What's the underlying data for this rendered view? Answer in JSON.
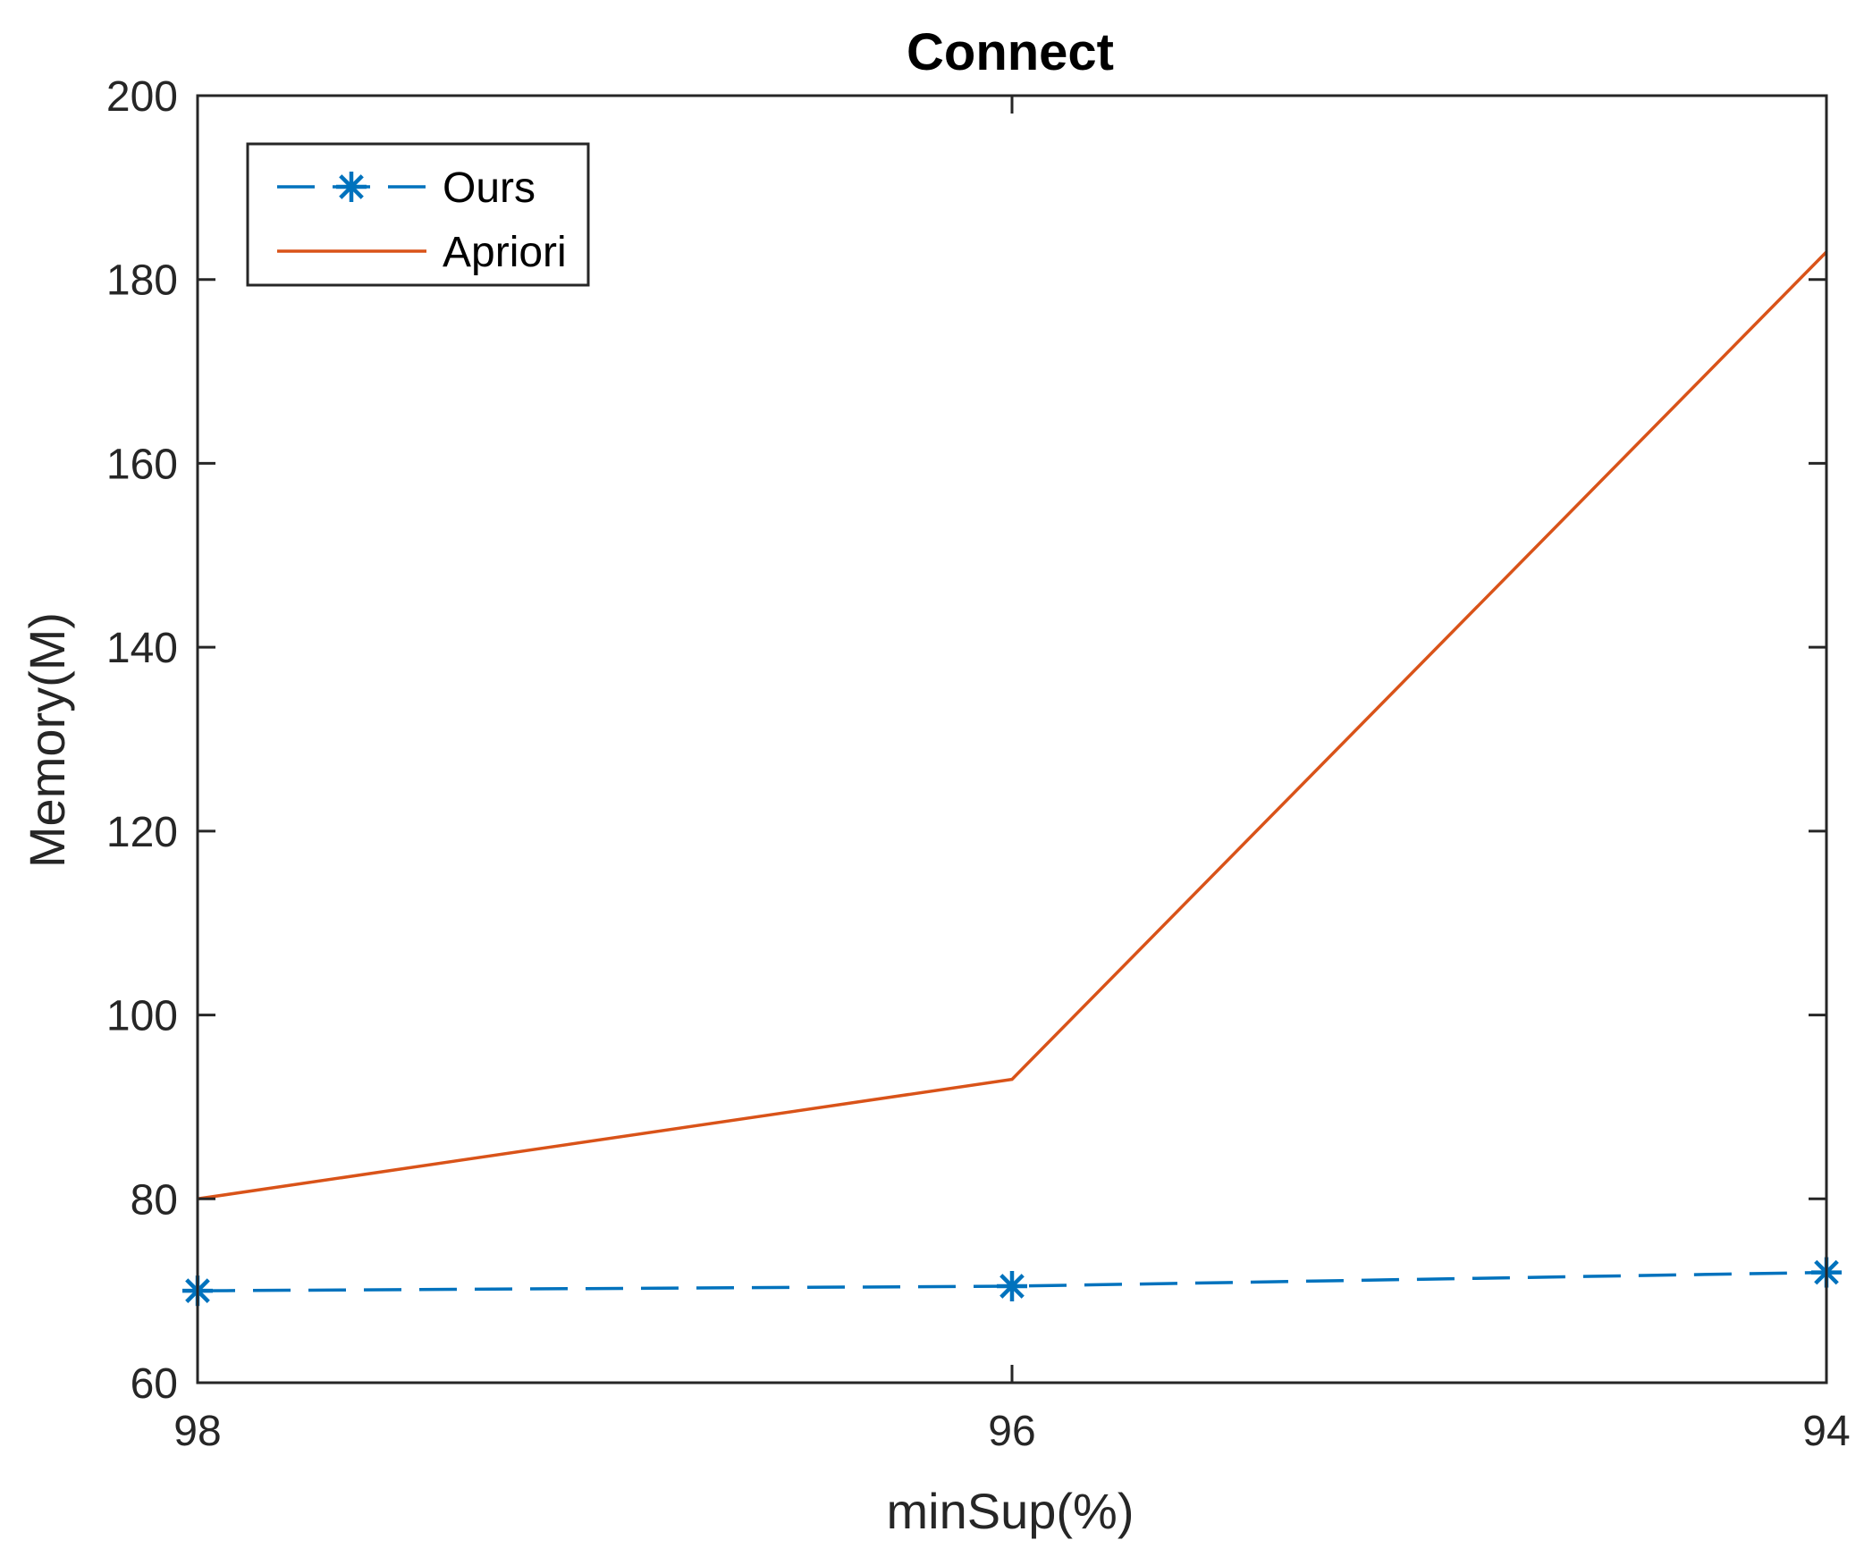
{
  "chart_data": {
    "type": "line",
    "title": "Connect",
    "xlabel": "minSup(%)",
    "ylabel": "Memory(M)",
    "x": [
      98,
      96,
      94
    ],
    "x_tick_labels": [
      "98",
      "96",
      "94"
    ],
    "x_reversed": true,
    "ylim": [
      60,
      200
    ],
    "y_ticks": [
      60,
      80,
      100,
      120,
      140,
      160,
      180,
      200
    ],
    "y_tick_labels": [
      "60",
      "80",
      "100",
      "120",
      "140",
      "160",
      "180",
      "200"
    ],
    "grid": false,
    "legend_position": "top-left",
    "series": [
      {
        "name": "Ours",
        "values": [
          70,
          70.5,
          72
        ],
        "color": "#0072BD",
        "line_style": "dashed",
        "marker": "asterisk"
      },
      {
        "name": "Apriori",
        "values": [
          80,
          93,
          183
        ],
        "color": "#D95319",
        "line_style": "solid",
        "marker": "none"
      }
    ]
  }
}
